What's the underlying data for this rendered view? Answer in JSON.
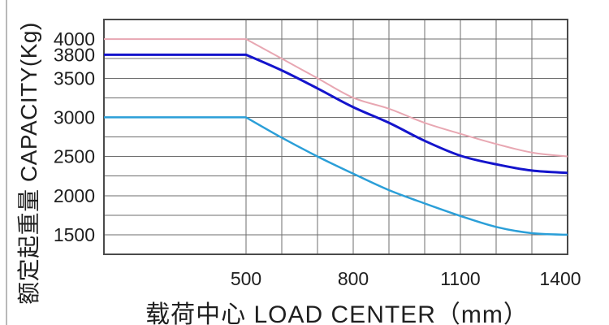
{
  "chart_data": {
    "type": "line",
    "title": "",
    "xlabel": "载荷中心 LOAD CENTER（mm）",
    "ylabel": "额定起重量 CAPACITY(Kg)",
    "x_axis": {
      "min": 500,
      "max": 1400,
      "unit": "mm",
      "grid": [
        500,
        600,
        700,
        800,
        900,
        1000,
        1100,
        1200,
        1300,
        1400
      ]
    },
    "y_axis": {
      "min": 1250,
      "max": 4250,
      "unit": "Kg",
      "grid": [
        1500,
        1750,
        2000,
        2250,
        2500,
        2750,
        3000,
        3250,
        3500,
        3750,
        4000
      ]
    },
    "x_ticks": [
      500,
      800,
      1100,
      1400
    ],
    "y_ticks": [
      4000,
      3800,
      3500,
      3000,
      2500,
      2000,
      1500
    ],
    "grid": true,
    "legend_position": "none",
    "series": [
      {
        "name": "capacity-curve-4000kg",
        "color": "#e8a7b2",
        "stroke_width": 2,
        "flat_from_left": true,
        "points": [
          [
            500,
            4000
          ],
          [
            600,
            3750
          ],
          [
            700,
            3500
          ],
          [
            800,
            3250
          ],
          [
            900,
            3110
          ],
          [
            1000,
            2930
          ],
          [
            1100,
            2790
          ],
          [
            1200,
            2660
          ],
          [
            1300,
            2550
          ],
          [
            1400,
            2500
          ]
        ]
      },
      {
        "name": "capacity-curve-3800kg",
        "color": "#1414cc",
        "stroke_width": 3,
        "flat_from_left": true,
        "points": [
          [
            500,
            3800
          ],
          [
            600,
            3600
          ],
          [
            700,
            3370
          ],
          [
            800,
            3130
          ],
          [
            900,
            2930
          ],
          [
            1000,
            2700
          ],
          [
            1100,
            2510
          ],
          [
            1200,
            2400
          ],
          [
            1300,
            2320
          ],
          [
            1400,
            2290
          ]
        ]
      },
      {
        "name": "capacity-curve-3000kg",
        "color": "#2b9fd8",
        "stroke_width": 2.5,
        "flat_from_left": true,
        "points": [
          [
            500,
            3000
          ],
          [
            600,
            2740
          ],
          [
            700,
            2500
          ],
          [
            800,
            2280
          ],
          [
            900,
            2070
          ],
          [
            1000,
            1900
          ],
          [
            1100,
            1740
          ],
          [
            1200,
            1600
          ],
          [
            1300,
            1520
          ],
          [
            1400,
            1500
          ]
        ]
      }
    ],
    "colors": {
      "grid": "#6e6e6e",
      "border": "#4a4a4a",
      "text": "#1f1f1f",
      "background": "#ffffff"
    }
  }
}
